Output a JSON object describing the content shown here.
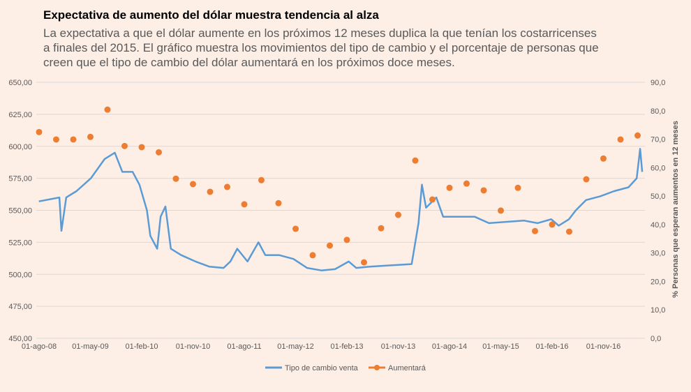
{
  "title": "Expectativa de aumento del dólar muestra tendencia al alza",
  "subtitle": "La expectativa a que el dólar aumente en los próximos 12 meses duplica la que tenían los costarricenses a finales del 2015. El gráfico muestra los movimientos del tipo de cambio y el porcentaje de personas que creen que el tipo de cambio del dólar aumentará en los próximos doce meses.",
  "chart_data": {
    "type": "line",
    "title": "Expectativa de aumento del dólar muestra tendencia al alza",
    "xlabel": "",
    "ylabel": "",
    "y2label": "% Personas que esperan aumentos en 12 meses",
    "xlim": [
      2008.58,
      2017.45
    ],
    "ylim": [
      450,
      650
    ],
    "y2lim": [
      0,
      90
    ],
    "grid": true,
    "legend": "bottom",
    "x_ticks": [
      {
        "x": 2008.583,
        "label": "01-ago-08"
      },
      {
        "x": 2009.333,
        "label": "01-may-09"
      },
      {
        "x": 2010.083,
        "label": "01-feb-10"
      },
      {
        "x": 2010.833,
        "label": "01-nov-10"
      },
      {
        "x": 2011.583,
        "label": "01-ago-11"
      },
      {
        "x": 2012.333,
        "label": "01-may-12"
      },
      {
        "x": 2013.083,
        "label": "01-feb-13"
      },
      {
        "x": 2013.833,
        "label": "01-nov-13"
      },
      {
        "x": 2014.583,
        "label": "01-ago-14"
      },
      {
        "x": 2015.333,
        "label": "01-may-15"
      },
      {
        "x": 2016.083,
        "label": "01-feb-16"
      },
      {
        "x": 2016.833,
        "label": "01-nov-16"
      }
    ],
    "y_ticks": [
      "450,00",
      "475,00",
      "500,00",
      "525,00",
      "550,00",
      "575,00",
      "600,00",
      "625,00",
      "650,00"
    ],
    "y2_ticks": [
      "0,0",
      "10,0",
      "20,0",
      "30,0",
      "40,0",
      "50,0",
      "60,0",
      "70,0",
      "80,0",
      "90,0"
    ],
    "series": [
      {
        "name": "Tipo de cambio venta",
        "axis": "left",
        "kind": "line",
        "color": "#5b9bd5",
        "points": [
          [
            2008.58,
            557
          ],
          [
            2008.88,
            560
          ],
          [
            2008.91,
            534
          ],
          [
            2008.98,
            560
          ],
          [
            2009.13,
            565
          ],
          [
            2009.34,
            575
          ],
          [
            2009.54,
            590
          ],
          [
            2009.69,
            595
          ],
          [
            2009.8,
            580
          ],
          [
            2009.95,
            580
          ],
          [
            2010.05,
            570
          ],
          [
            2010.16,
            550
          ],
          [
            2010.21,
            530
          ],
          [
            2010.31,
            520
          ],
          [
            2010.36,
            545
          ],
          [
            2010.43,
            553
          ],
          [
            2010.51,
            520
          ],
          [
            2010.66,
            515
          ],
          [
            2010.87,
            510
          ],
          [
            2011.07,
            506
          ],
          [
            2011.28,
            505
          ],
          [
            2011.38,
            510
          ],
          [
            2011.48,
            520
          ],
          [
            2011.63,
            510
          ],
          [
            2011.79,
            525
          ],
          [
            2011.89,
            515
          ],
          [
            2012.09,
            515
          ],
          [
            2012.3,
            512
          ],
          [
            2012.5,
            505
          ],
          [
            2012.71,
            503
          ],
          [
            2012.91,
            504
          ],
          [
            2013.11,
            510
          ],
          [
            2013.22,
            505
          ],
          [
            2013.42,
            506
          ],
          [
            2013.73,
            507
          ],
          [
            2014.03,
            508
          ],
          [
            2014.13,
            540
          ],
          [
            2014.18,
            570
          ],
          [
            2014.24,
            552
          ],
          [
            2014.39,
            560
          ],
          [
            2014.49,
            545
          ],
          [
            2014.95,
            545
          ],
          [
            2015.16,
            540
          ],
          [
            2015.67,
            542
          ],
          [
            2015.87,
            540
          ],
          [
            2016.07,
            543
          ],
          [
            2016.18,
            538
          ],
          [
            2016.33,
            543
          ],
          [
            2016.43,
            550
          ],
          [
            2016.58,
            558
          ],
          [
            2016.79,
            561
          ],
          [
            2016.99,
            565
          ],
          [
            2017.2,
            568
          ],
          [
            2017.32,
            575
          ],
          [
            2017.37,
            598
          ],
          [
            2017.4,
            580
          ]
        ]
      },
      {
        "name": "Aumentará",
        "axis": "right",
        "kind": "scatter",
        "color": "#ed7d31",
        "x_start": 2008.583,
        "x_step": 0.25,
        "values": [
          72.5,
          69.9,
          69.9,
          70.8,
          80.4,
          67.6,
          67.2,
          65.4,
          56.1,
          54.2,
          51.5,
          53.2,
          47.1,
          55.6,
          47.5,
          38.5,
          29.2,
          32.6,
          34.6,
          26.7,
          38.7,
          43.4,
          62.5,
          48.8,
          52.9,
          54.4,
          52.0,
          44.9,
          52.9,
          37.7,
          40.0,
          37.5,
          55.9,
          63.2,
          69.9,
          71.3
        ]
      }
    ]
  }
}
